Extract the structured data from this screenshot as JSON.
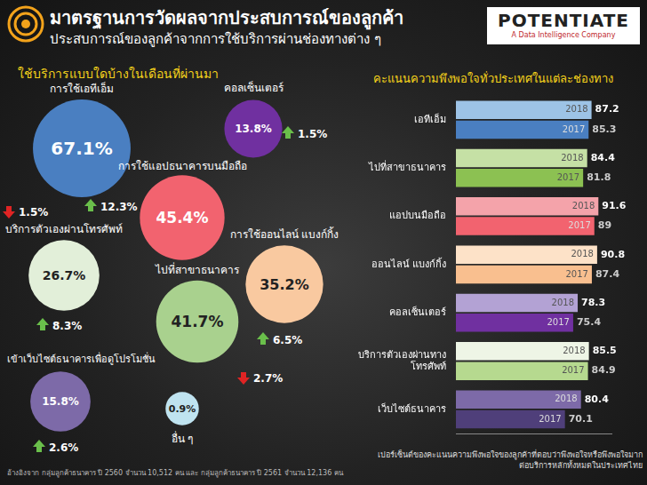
{
  "header": {
    "title": "มาตรฐานการวัดผลจากประสบการณ์ของลูกค้า",
    "subtitle": "ประสบการณ์ของลูกค้าจากการใช้บริการผ่านช่องทางต่าง ๆ",
    "logo": "POTENTIATE",
    "logo_tagline": "A Data Intelligence Company"
  },
  "usage": {
    "title": "ใช้บริการแบบใดบ้างในเดือนที่ผ่านมา",
    "nodes": [
      {
        "label": "การใช้เอทีเอ็ม",
        "value": 67.1,
        "value_label": "67.1%",
        "change": -1.5,
        "change_label": "1.5%",
        "color": "#4a7fc1"
      },
      {
        "label": "คอลเซ็นเตอร์",
        "value": 13.8,
        "value_label": "13.8%",
        "change": 1.5,
        "change_label": "1.5%",
        "color": "#7030a0"
      },
      {
        "label": "การใช้แอปธนาคารบนมือถือ",
        "value": 45.4,
        "value_label": "45.4%",
        "change": 12.3,
        "change_label": "12.3%",
        "color": "#f2636f"
      },
      {
        "label": "บริการตัวเองผ่านโทรศัพท์",
        "value": 26.7,
        "value_label": "26.7%",
        "change": 8.3,
        "change_label": "8.3%",
        "color": "#e2efd9"
      },
      {
        "label": "การใช้ออนไลน์ แบงก์กิ้ง",
        "value": 35.2,
        "value_label": "35.2%",
        "change": 6.5,
        "change_label": "6.5%",
        "color": "#f9c9a0"
      },
      {
        "label": "ไปที่สาขาธนาคาร",
        "value": 41.7,
        "value_label": "41.7%",
        "change": -2.7,
        "change_label": "2.7%",
        "color": "#a9d18e"
      },
      {
        "label": "เข้าเว็บไซต์ธนาคารเพื่อดูโปรโมชั่น",
        "value": 15.8,
        "value_label": "15.8%",
        "change": 2.6,
        "change_label": "2.6%",
        "color": "#7d6aa8"
      },
      {
        "label": "อื่น ๆ",
        "value": 0.9,
        "value_label": "0.9%",
        "color": "#bfe3f0"
      }
    ]
  },
  "chart_data": {
    "type": "bar",
    "orientation": "horizontal",
    "title": "คะแนนความพึงพอใจทั่วประเทศในแต่ละช่องทาง",
    "categories": [
      "เอทีเอ็ม",
      "ไปที่สาขาธนาคาร",
      "แอปบนมือถือ",
      "ออนไลน์ แบงก์กิ้ง",
      "คอลเซ็นเตอร์",
      [
        "บริการตัวเองผ่านทาง",
        "โทรศัพท์"
      ],
      "เว็บไซต์ธนาคาร"
    ],
    "series": [
      {
        "name": "2018",
        "values": [
          87.2,
          84.4,
          91.6,
          90.8,
          78.3,
          85.5,
          80.4
        ],
        "colors": [
          "#9dc3e6",
          "#c5e0a5",
          "#f4a3aa",
          "#fde2c8",
          "#b3a2d4",
          "#eef5e6",
          "#7d6aa8"
        ]
      },
      {
        "name": "2017",
        "values": [
          85.3,
          81.8,
          89,
          87.4,
          75.4,
          84.9,
          70.1
        ],
        "colors": [
          "#4a7fc1",
          "#8cc152",
          "#f2636f",
          "#f9bf8f",
          "#7030a0",
          "#b6d98f",
          "#4f3f7a"
        ]
      }
    ],
    "xlim": [
      0,
      100
    ],
    "grid": false,
    "tick_labels": "y",
    "data_labels": true
  },
  "footer": {
    "source": "อ้างอิงจาก กลุ่มลูกค้าธนาคาร ปี 2560 จำนวน 10,512 คน และ กลุ่มลูกค้าธนาคาร ปี 2561 จำนวน 12,136 คน",
    "note": "เปอร์เซ็นต์ของคะแนนความพึงพอใจของลูกค้าที่ตอบว่าพึงพอใจหรือพึงพอใจมากต่อบริการหลักทั้งหมดในประเทศไทย"
  }
}
